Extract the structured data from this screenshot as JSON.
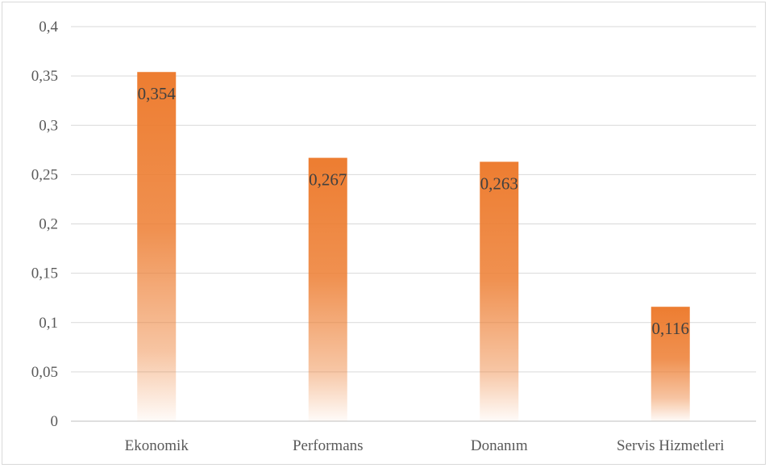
{
  "chart_data": {
    "type": "bar",
    "categories": [
      "Ekonomik",
      "Performans",
      "Donanım",
      "Servis Hizmetleri"
    ],
    "values": [
      0.354,
      0.267,
      0.263,
      0.116
    ],
    "data_labels": [
      "0,354",
      "0,267",
      "0,263",
      "0,116"
    ],
    "y_ticks": [
      0,
      0.05,
      0.1,
      0.15,
      0.2,
      0.25,
      0.3,
      0.35,
      0.4
    ],
    "y_tick_labels": [
      "0",
      "0,05",
      "0,1",
      "0,15",
      "0,2",
      "0,25",
      "0,3",
      "0,35",
      "0,4"
    ],
    "ylim": [
      0,
      0.4
    ],
    "grid": true,
    "legend": "none",
    "title": "",
    "xlabel": "",
    "ylabel": "",
    "colors": {
      "bar": "#ED7D31",
      "grid": "#d9d9d9",
      "axis": "#bfbfbf",
      "text": "#595959"
    }
  }
}
